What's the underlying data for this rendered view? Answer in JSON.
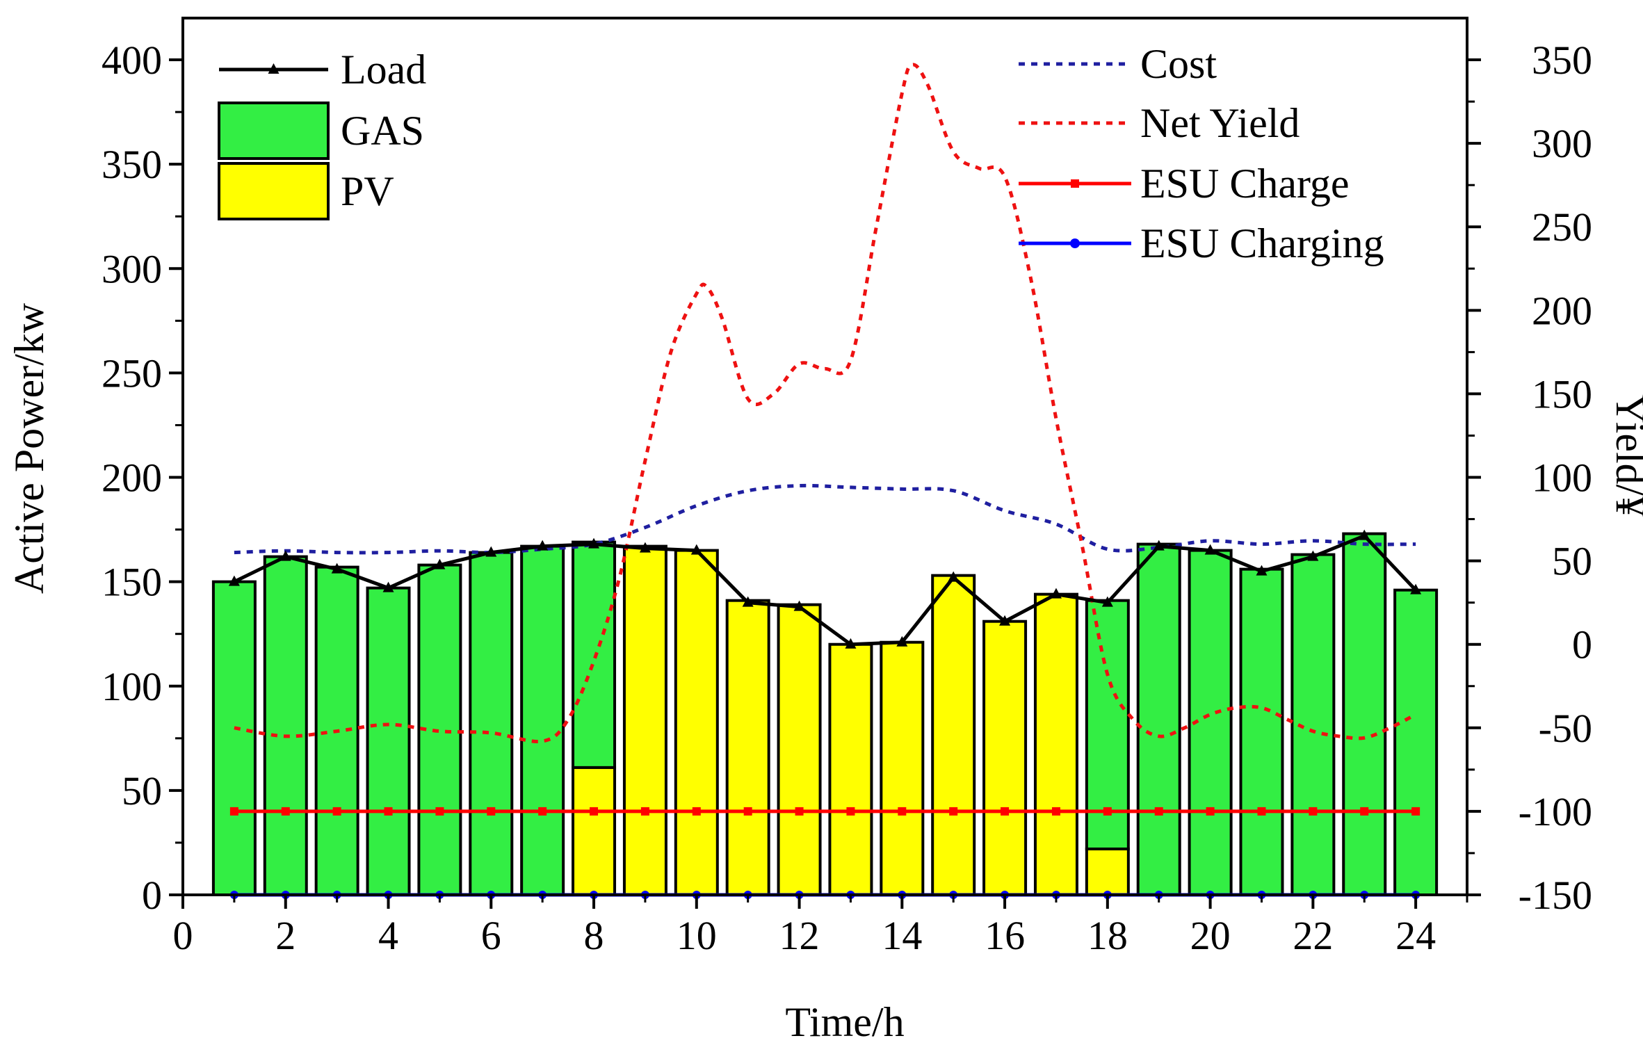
{
  "chart_data": {
    "type": "bar",
    "stacked": true,
    "categories": [
      1,
      2,
      3,
      4,
      5,
      6,
      7,
      8,
      9,
      10,
      11,
      12,
      13,
      14,
      15,
      16,
      17,
      18,
      19,
      20,
      21,
      22,
      23,
      24
    ],
    "xlabel": "Time/h",
    "ylabel": "Active Power/kw",
    "y2label": "Yield/¥",
    "xlim": [
      0,
      25
    ],
    "ylim": [
      0,
      420
    ],
    "y2lim": [
      -150,
      375
    ],
    "x_ticks": [
      0,
      2,
      4,
      6,
      8,
      10,
      12,
      14,
      16,
      18,
      20,
      22,
      24
    ],
    "y_ticks": [
      0,
      50,
      100,
      150,
      200,
      250,
      300,
      350,
      400
    ],
    "y2_ticks": [
      -150,
      -100,
      -50,
      0,
      50,
      100,
      150,
      200,
      250,
      300,
      350
    ],
    "series": [
      {
        "name": "Load",
        "kind": "line",
        "axis": "left",
        "color": "#000000",
        "marker": "triangle",
        "values": [
          150,
          162,
          156,
          147,
          158,
          164,
          167,
          168,
          166,
          165,
          140,
          138,
          120,
          121,
          152,
          131,
          144,
          140,
          167,
          165,
          155,
          162,
          172,
          146
        ]
      },
      {
        "name": "GAS",
        "kind": "bar",
        "axis": "left",
        "color": "#33ee44",
        "values": [
          150,
          162,
          157,
          147,
          158,
          164,
          167,
          108,
          0,
          0,
          0,
          0,
          0,
          0,
          0,
          0,
          0,
          119,
          168,
          165,
          156,
          163,
          173,
          146
        ]
      },
      {
        "name": "PV",
        "kind": "bar",
        "axis": "left",
        "color": "#ffff00",
        "values": [
          0,
          0,
          0,
          0,
          0,
          0,
          0,
          61,
          167,
          165,
          141,
          139,
          120,
          121,
          153,
          131,
          144,
          22,
          0,
          0,
          0,
          0,
          0,
          0
        ]
      },
      {
        "name": "Cost",
        "kind": "line",
        "axis": "right",
        "style": "dotted",
        "color": "#1f1fa0",
        "x": [
          1,
          2,
          3,
          4,
          5,
          6,
          7,
          8,
          9,
          10,
          11,
          12,
          13,
          14,
          15,
          16,
          17,
          18,
          19,
          20,
          21,
          22,
          23,
          24
        ],
        "values": [
          55,
          56,
          55,
          55,
          56,
          55,
          57,
          60,
          70,
          83,
          92,
          95,
          94,
          93,
          92,
          80,
          72,
          57,
          58,
          62,
          60,
          62,
          60,
          60
        ]
      },
      {
        "name": "Net Yield",
        "kind": "line",
        "axis": "right",
        "style": "dotted",
        "color": "#ee1111",
        "x": [
          1,
          2,
          3,
          4,
          5,
          6,
          7,
          7.5,
          8,
          8.5,
          9,
          9.5,
          10,
          10.2,
          10.5,
          11,
          11.5,
          12,
          12.5,
          13,
          13.5,
          14,
          14.2,
          14.5,
          15,
          15.5,
          16,
          16.5,
          17,
          17.5,
          18,
          18.5,
          19,
          19.5,
          20,
          20.5,
          21,
          21.5,
          22,
          22.5,
          23,
          23.5,
          24
        ],
        "values": [
          -50,
          -55,
          -52,
          -48,
          -52,
          -53,
          -58,
          -45,
          -10,
          40,
          110,
          175,
          210,
          214,
          195,
          147,
          150,
          168,
          165,
          170,
          250,
          330,
          347,
          335,
          295,
          285,
          280,
          220,
          135,
          60,
          -18,
          -45,
          -55,
          -50,
          -42,
          -38,
          -38,
          -45,
          -52,
          -55,
          -56,
          -50,
          -42
        ]
      },
      {
        "name": "ESU Charge",
        "kind": "line",
        "axis": "left",
        "color": "#ff0000",
        "marker": "square",
        "values": [
          40,
          40,
          40,
          40,
          40,
          40,
          40,
          40,
          40,
          40,
          40,
          40,
          40,
          40,
          40,
          40,
          40,
          40,
          40,
          40,
          40,
          40,
          40,
          40
        ]
      },
      {
        "name": "ESU Charging",
        "kind": "line",
        "axis": "left",
        "color": "#0000ff",
        "marker": "circle",
        "values": [
          0,
          0,
          0,
          0,
          0,
          0,
          0,
          0,
          0,
          0,
          0,
          0,
          0,
          0,
          0,
          0,
          0,
          0,
          0,
          0,
          0,
          0,
          0,
          0
        ]
      }
    ],
    "legend_left": [
      "Load",
      "GAS",
      "PV"
    ],
    "legend_right": [
      "Cost",
      "Net Yield",
      "ESU Charge",
      "ESU Charging"
    ]
  }
}
